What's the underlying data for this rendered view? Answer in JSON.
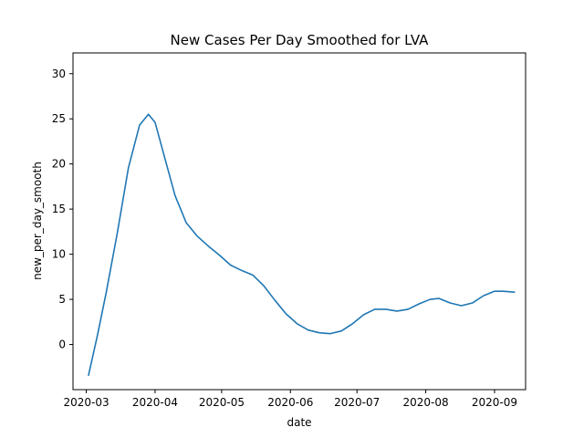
{
  "chart_data": {
    "type": "line",
    "title": "New Cases Per Day Smoothed for LVA",
    "xlabel": "date",
    "ylabel": "new_per_day_smooth",
    "x_ticks": [
      "2020-03-01",
      "2020-04-01",
      "2020-05-01",
      "2020-06-01",
      "2020-07-01",
      "2020-08-01",
      "2020-09-01"
    ],
    "x_tick_labels": [
      "2020-03",
      "2020-04",
      "2020-05",
      "2020-06",
      "2020-07",
      "2020-08",
      "2020-09"
    ],
    "xlim": [
      "2020-02-24",
      "2020-09-15"
    ],
    "y_ticks": [
      0,
      5,
      10,
      15,
      20,
      25,
      30
    ],
    "y_tick_labels": [
      "0",
      "5",
      "10",
      "15",
      "20",
      "25",
      "30"
    ],
    "ylim": [
      -5,
      32.3
    ],
    "grid": false,
    "legend": "none",
    "series": [
      {
        "color": "#1f77b4",
        "points": [
          [
            "2020-03-02",
            -3.4
          ],
          [
            "2020-03-06",
            1.0
          ],
          [
            "2020-03-10",
            5.8
          ],
          [
            "2020-03-15",
            12.4
          ],
          [
            "2020-03-20",
            19.6
          ],
          [
            "2020-03-25",
            24.3
          ],
          [
            "2020-03-29",
            25.5
          ],
          [
            "2020-04-01",
            24.6
          ],
          [
            "2020-04-05",
            21.0
          ],
          [
            "2020-04-10",
            16.5
          ],
          [
            "2020-04-15",
            13.5
          ],
          [
            "2020-04-20",
            12.0
          ],
          [
            "2020-04-25",
            10.9
          ],
          [
            "2020-04-30",
            9.9
          ],
          [
            "2020-05-05",
            8.8
          ],
          [
            "2020-05-10",
            8.2
          ],
          [
            "2020-05-15",
            7.7
          ],
          [
            "2020-05-20",
            6.5
          ],
          [
            "2020-05-25",
            4.9
          ],
          [
            "2020-05-30",
            3.4
          ],
          [
            "2020-06-04",
            2.3
          ],
          [
            "2020-06-09",
            1.6
          ],
          [
            "2020-06-14",
            1.3
          ],
          [
            "2020-06-19",
            1.2
          ],
          [
            "2020-06-24",
            1.5
          ],
          [
            "2020-06-29",
            2.3
          ],
          [
            "2020-07-04",
            3.3
          ],
          [
            "2020-07-09",
            3.9
          ],
          [
            "2020-07-14",
            3.9
          ],
          [
            "2020-07-19",
            3.7
          ],
          [
            "2020-07-24",
            3.9
          ],
          [
            "2020-07-29",
            4.5
          ],
          [
            "2020-08-03",
            5.0
          ],
          [
            "2020-08-07",
            5.1
          ],
          [
            "2020-08-12",
            4.6
          ],
          [
            "2020-08-17",
            4.3
          ],
          [
            "2020-08-22",
            4.6
          ],
          [
            "2020-08-27",
            5.4
          ],
          [
            "2020-09-01",
            5.9
          ],
          [
            "2020-09-05",
            5.9
          ],
          [
            "2020-09-10",
            5.8
          ]
        ]
      }
    ]
  }
}
